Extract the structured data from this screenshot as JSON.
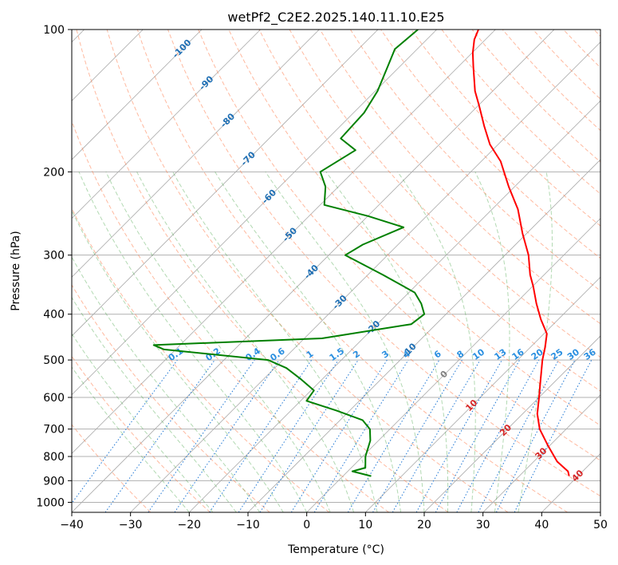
{
  "chart_data": {
    "type": "skew-t",
    "title": "wetPf2_C2E2.2025.140.11.10.E25",
    "xlabel": "Temperature (°C)",
    "ylabel": "Pressure (hPa)",
    "xlim": [
      -40,
      50
    ],
    "ylim": [
      1050,
      100
    ],
    "y_scale": "log",
    "skew": "45deg",
    "grid": true,
    "x_ticks": [
      -40,
      -30,
      -20,
      -10,
      0,
      10,
      20,
      30,
      40,
      50
    ],
    "y_ticks": [
      100,
      200,
      300,
      400,
      500,
      600,
      700,
      800,
      900,
      1000
    ],
    "colors": {
      "temperature": "#ff0000",
      "dewpoint": "#008000",
      "dry_adiabat": "#ff7f50",
      "moist_adiabat": "#55aa55",
      "mixing_ratio": "#1f77d4",
      "isotherm": "#808080",
      "label_cold": "#1f6fb4",
      "label_mixing": "#2a8fe0",
      "label_zero": "#808080",
      "label_warm": "#d62728"
    },
    "temperature_profile": [
      {
        "p": 880,
        "t": 38.5
      },
      {
        "p": 860,
        "t": 37.5
      },
      {
        "p": 820,
        "t": 34.0
      },
      {
        "p": 760,
        "t": 29.8
      },
      {
        "p": 700,
        "t": 25.5
      },
      {
        "p": 650,
        "t": 22.5
      },
      {
        "p": 600,
        "t": 20.0
      },
      {
        "p": 560,
        "t": 17.8
      },
      {
        "p": 500,
        "t": 14.2
      },
      {
        "p": 470,
        "t": 12.5
      },
      {
        "p": 440,
        "t": 10.5
      },
      {
        "p": 410,
        "t": 7.0
      },
      {
        "p": 380,
        "t": 3.6
      },
      {
        "p": 350,
        "t": 0.2
      },
      {
        "p": 330,
        "t": -2.4
      },
      {
        "p": 300,
        "t": -6.0
      },
      {
        "p": 270,
        "t": -10.7
      },
      {
        "p": 240,
        "t": -15.6
      },
      {
        "p": 215,
        "t": -21.0
      },
      {
        "p": 190,
        "t": -26.7
      },
      {
        "p": 175,
        "t": -31.4
      },
      {
        "p": 160,
        "t": -35.5
      },
      {
        "p": 145,
        "t": -39.8
      },
      {
        "p": 135,
        "t": -43.0
      },
      {
        "p": 120,
        "t": -47.4
      },
      {
        "p": 112,
        "t": -49.9
      },
      {
        "p": 105,
        "t": -51.9
      },
      {
        "p": 100,
        "t": -52.9
      }
    ],
    "dewpoint_profile": [
      {
        "p": 880,
        "t": 4.8
      },
      {
        "p": 860,
        "t": 0.8
      },
      {
        "p": 845,
        "t": 2.4
      },
      {
        "p": 800,
        "t": 0.5
      },
      {
        "p": 740,
        "t": -1.4
      },
      {
        "p": 700,
        "t": -3.4
      },
      {
        "p": 670,
        "t": -6.2
      },
      {
        "p": 640,
        "t": -12.2
      },
      {
        "p": 610,
        "t": -19.0
      },
      {
        "p": 580,
        "t": -19.5
      },
      {
        "p": 550,
        "t": -23.5
      },
      {
        "p": 520,
        "t": -28.0
      },
      {
        "p": 500,
        "t": -32.5
      },
      {
        "p": 475,
        "t": -52.0
      },
      {
        "p": 465,
        "t": -54.5
      },
      {
        "p": 450,
        "t": -27.0
      },
      {
        "p": 420,
        "t": -14.2
      },
      {
        "p": 400,
        "t": -13.7
      },
      {
        "p": 380,
        "t": -16.0
      },
      {
        "p": 360,
        "t": -19.0
      },
      {
        "p": 330,
        "t": -27.5
      },
      {
        "p": 300,
        "t": -37.2
      },
      {
        "p": 285,
        "t": -36.0
      },
      {
        "p": 262,
        "t": -32.0
      },
      {
        "p": 248,
        "t": -40.0
      },
      {
        "p": 235,
        "t": -49.3
      },
      {
        "p": 215,
        "t": -52.2
      },
      {
        "p": 200,
        "t": -55.6
      },
      {
        "p": 180,
        "t": -53.3
      },
      {
        "p": 170,
        "t": -57.8
      },
      {
        "p": 150,
        "t": -58.2
      },
      {
        "p": 135,
        "t": -59.6
      },
      {
        "p": 120,
        "t": -62.0
      },
      {
        "p": 110,
        "t": -63.8
      },
      {
        "p": 100,
        "t": -63.2
      }
    ],
    "dry_adiabat_labels": [
      {
        "text": "10",
        "t": 30
      },
      {
        "text": "20",
        "t": 40
      },
      {
        "text": "30",
        "t": 50
      },
      {
        "text": "40",
        "t": 60
      }
    ],
    "isotherm_labels": [
      {
        "text": "-100",
        "p": 110
      },
      {
        "text": "-90",
        "p": 130
      },
      {
        "text": "-80",
        "p": 156
      },
      {
        "text": "-70",
        "p": 188
      },
      {
        "text": "-60",
        "p": 226
      },
      {
        "text": "-50",
        "p": 272
      },
      {
        "text": "-40",
        "p": 326
      },
      {
        "text": "-30",
        "p": 378
      },
      {
        "text": "-20",
        "p": 428
      },
      {
        "text": "-10",
        "p": 478
      },
      {
        "text": "0",
        "p": 537
      }
    ],
    "mixing_ratio_labels": [
      "0.1",
      "0.2",
      "0.4",
      "0.6",
      "1",
      "1.5",
      "2",
      "3",
      "4",
      "6",
      "8",
      "10",
      "13",
      "16",
      "20",
      "25",
      "30",
      "36"
    ]
  }
}
